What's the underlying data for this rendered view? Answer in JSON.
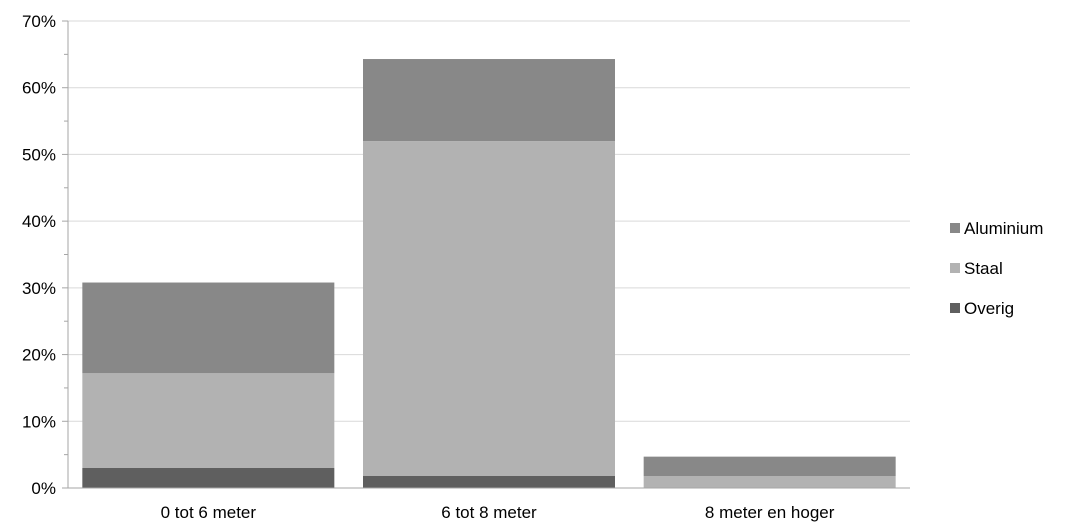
{
  "chart_data": {
    "type": "bar",
    "stacked": true,
    "categories": [
      "0 tot 6 meter",
      "6 tot 8 meter",
      "8 meter en hoger"
    ],
    "series": [
      {
        "name": "Overig",
        "values": [
          3.0,
          1.8,
          0.0
        ],
        "color": "#5f5f5f"
      },
      {
        "name": "Staal",
        "values": [
          14.2,
          50.2,
          1.8
        ],
        "color": "#b2b2b2"
      },
      {
        "name": "Aluminium",
        "values": [
          13.6,
          12.3,
          2.9
        ],
        "color": "#888888"
      }
    ],
    "ylim": [
      0,
      70
    ],
    "yticks": [
      "0%",
      "10%",
      "20%",
      "30%",
      "40%",
      "50%",
      "60%",
      "70%"
    ],
    "ytick_values": [
      0,
      10,
      20,
      30,
      40,
      50,
      60,
      70
    ],
    "legend": {
      "placement": "right",
      "entries": [
        "Aluminium",
        "Staal",
        "Overig"
      ]
    },
    "grid": true,
    "title": "",
    "xlabel": "",
    "ylabel": ""
  }
}
